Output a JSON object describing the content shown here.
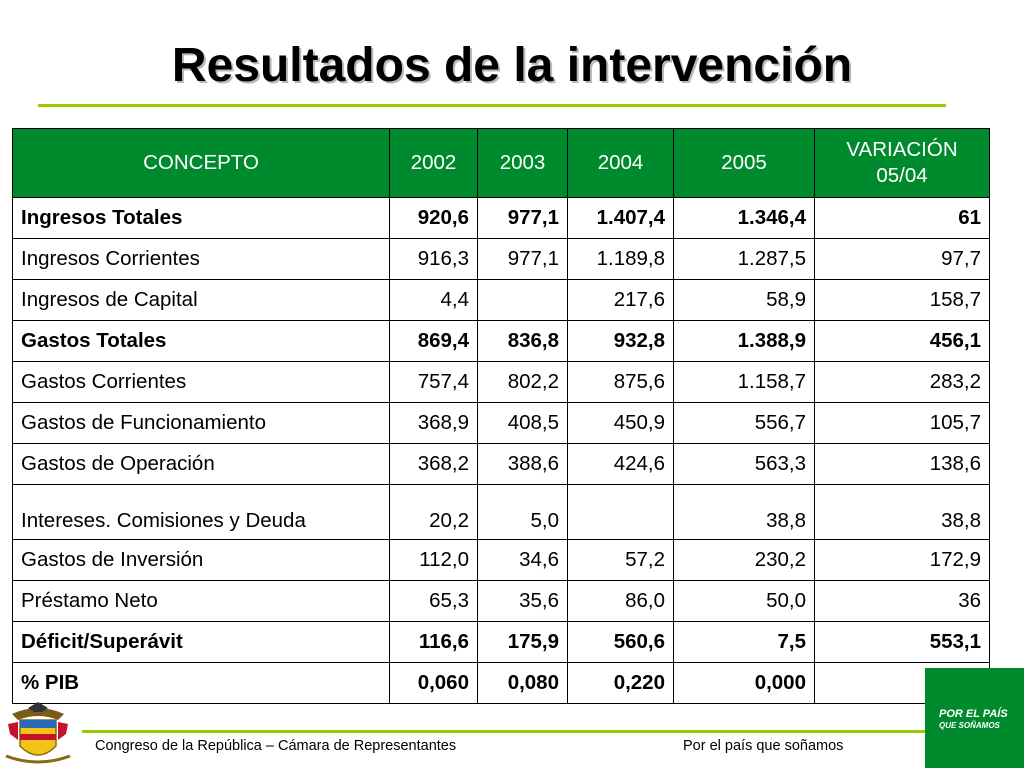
{
  "title": "Resultados de la intervención",
  "table": {
    "headers": [
      "CONCEPTO",
      "2002",
      "2003",
      "2004",
      "2005",
      "VARIACIÓN",
      "05/04"
    ],
    "rows": [
      {
        "concept": "Ingresos Totales",
        "v2002": "920,6",
        "v2003": "977,1",
        "v2004": "1.407,4",
        "v2005": "1.346,4",
        "variation": "61"
      },
      {
        "concept": "Ingresos Corrientes",
        "v2002": "916,3",
        "v2003": "977,1",
        "v2004": "1.189,8",
        "v2005": "1.287,5",
        "variation": "97,7"
      },
      {
        "concept": "Ingresos de Capital",
        "v2002": "4,4",
        "v2003": "",
        "v2004": "217,6",
        "v2005": "58,9",
        "variation": "158,7"
      },
      {
        "concept": "Gastos Totales",
        "v2002": "869,4",
        "v2003": "836,8",
        "v2004": "932,8",
        "v2005": "1.388,9",
        "variation": "456,1"
      },
      {
        "concept": "Gastos Corrientes",
        "v2002": "757,4",
        "v2003": "802,2",
        "v2004": "875,6",
        "v2005": "1.158,7",
        "variation": "283,2"
      },
      {
        "concept": "Gastos de Funcionamiento",
        "v2002": "368,9",
        "v2003": "408,5",
        "v2004": "450,9",
        "v2005": "556,7",
        "variation": "105,7"
      },
      {
        "concept": "Gastos de Operación",
        "v2002": "368,2",
        "v2003": "388,6",
        "v2004": "424,6",
        "v2005": "563,3",
        "variation": "138,6"
      },
      {
        "concept": "Intereses. Comisiones y Deuda",
        "v2002": "20,2",
        "v2003": "5,0",
        "v2004": "",
        "v2005": "38,8",
        "variation": "38,8"
      },
      {
        "concept": "Gastos de Inversión",
        "v2002": "112,0",
        "v2003": "34,6",
        "v2004": "57,2",
        "v2005": "230,2",
        "variation": "172,9"
      },
      {
        "concept": "Préstamo Neto",
        "v2002": "65,3",
        "v2003": "35,6",
        "v2004": "86,0",
        "v2005": "50,0",
        "variation": "36"
      },
      {
        "concept": "Déficit/Superávit",
        "v2002": "116,6",
        "v2003": "175,9",
        "v2004": "560,6",
        "v2005": "7,5",
        "variation": "553,1"
      },
      {
        "concept": "% PIB",
        "v2002": "0,060",
        "v2003": "0,080",
        "v2004": "0,220",
        "v2005": "0,000",
        "variation": ""
      }
    ]
  },
  "chart_data": {
    "type": "table",
    "title": "Resultados de la intervención",
    "columns": [
      "CONCEPTO",
      "2002",
      "2003",
      "2004",
      "2005",
      "VARIACIÓN 05/04"
    ],
    "rows": [
      [
        "Ingresos Totales",
        "920,6",
        "977,1",
        "1.407,4",
        "1.346,4",
        "61"
      ],
      [
        "Ingresos Corrientes",
        "916,3",
        "977,1",
        "1.189,8",
        "1.287,5",
        "97,7"
      ],
      [
        "Ingresos de Capital",
        "4,4",
        "",
        "217,6",
        "58,9",
        "158,7"
      ],
      [
        "Gastos Totales",
        "869,4",
        "836,8",
        "932,8",
        "1.388,9",
        "456,1"
      ],
      [
        "Gastos Corrientes",
        "757,4",
        "802,2",
        "875,6",
        "1.158,7",
        "283,2"
      ],
      [
        "Gastos de Funcionamiento",
        "368,9",
        "408,5",
        "450,9",
        "556,7",
        "105,7"
      ],
      [
        "Gastos de Operación",
        "368,2",
        "388,6",
        "424,6",
        "563,3",
        "138,6"
      ],
      [
        "Intereses. Comisiones y Deuda",
        "20,2",
        "5,0",
        "",
        "38,8",
        "38,8"
      ],
      [
        "Gastos de Inversión",
        "112,0",
        "34,6",
        "57,2",
        "230,2",
        "172,9"
      ],
      [
        "Préstamo Neto",
        "65,3",
        "35,6",
        "86,0",
        "50,0",
        "36"
      ],
      [
        "Déficit/Superávit",
        "116,6",
        "175,9",
        "560,6",
        "7,5",
        "553,1"
      ],
      [
        "% PIB",
        "0,060",
        "0,080",
        "0,220",
        "0,000",
        ""
      ]
    ],
    "bold_rows": [
      "Ingresos Totales",
      "Gastos Totales",
      "Déficit/Superávit",
      "% PIB"
    ]
  },
  "footer": {
    "left": "Congreso de la República – Cámara de Representantes",
    "right": "Por el país que soñamos"
  },
  "logo": {
    "line1": "POR EL PAÍS",
    "line2": "QUE SOÑAMOS"
  },
  "colors": {
    "header_green": "#008a2e",
    "rule_green": "#99cc00"
  },
  "icons": {
    "crest": "colombia-coat-of-arms-icon"
  }
}
